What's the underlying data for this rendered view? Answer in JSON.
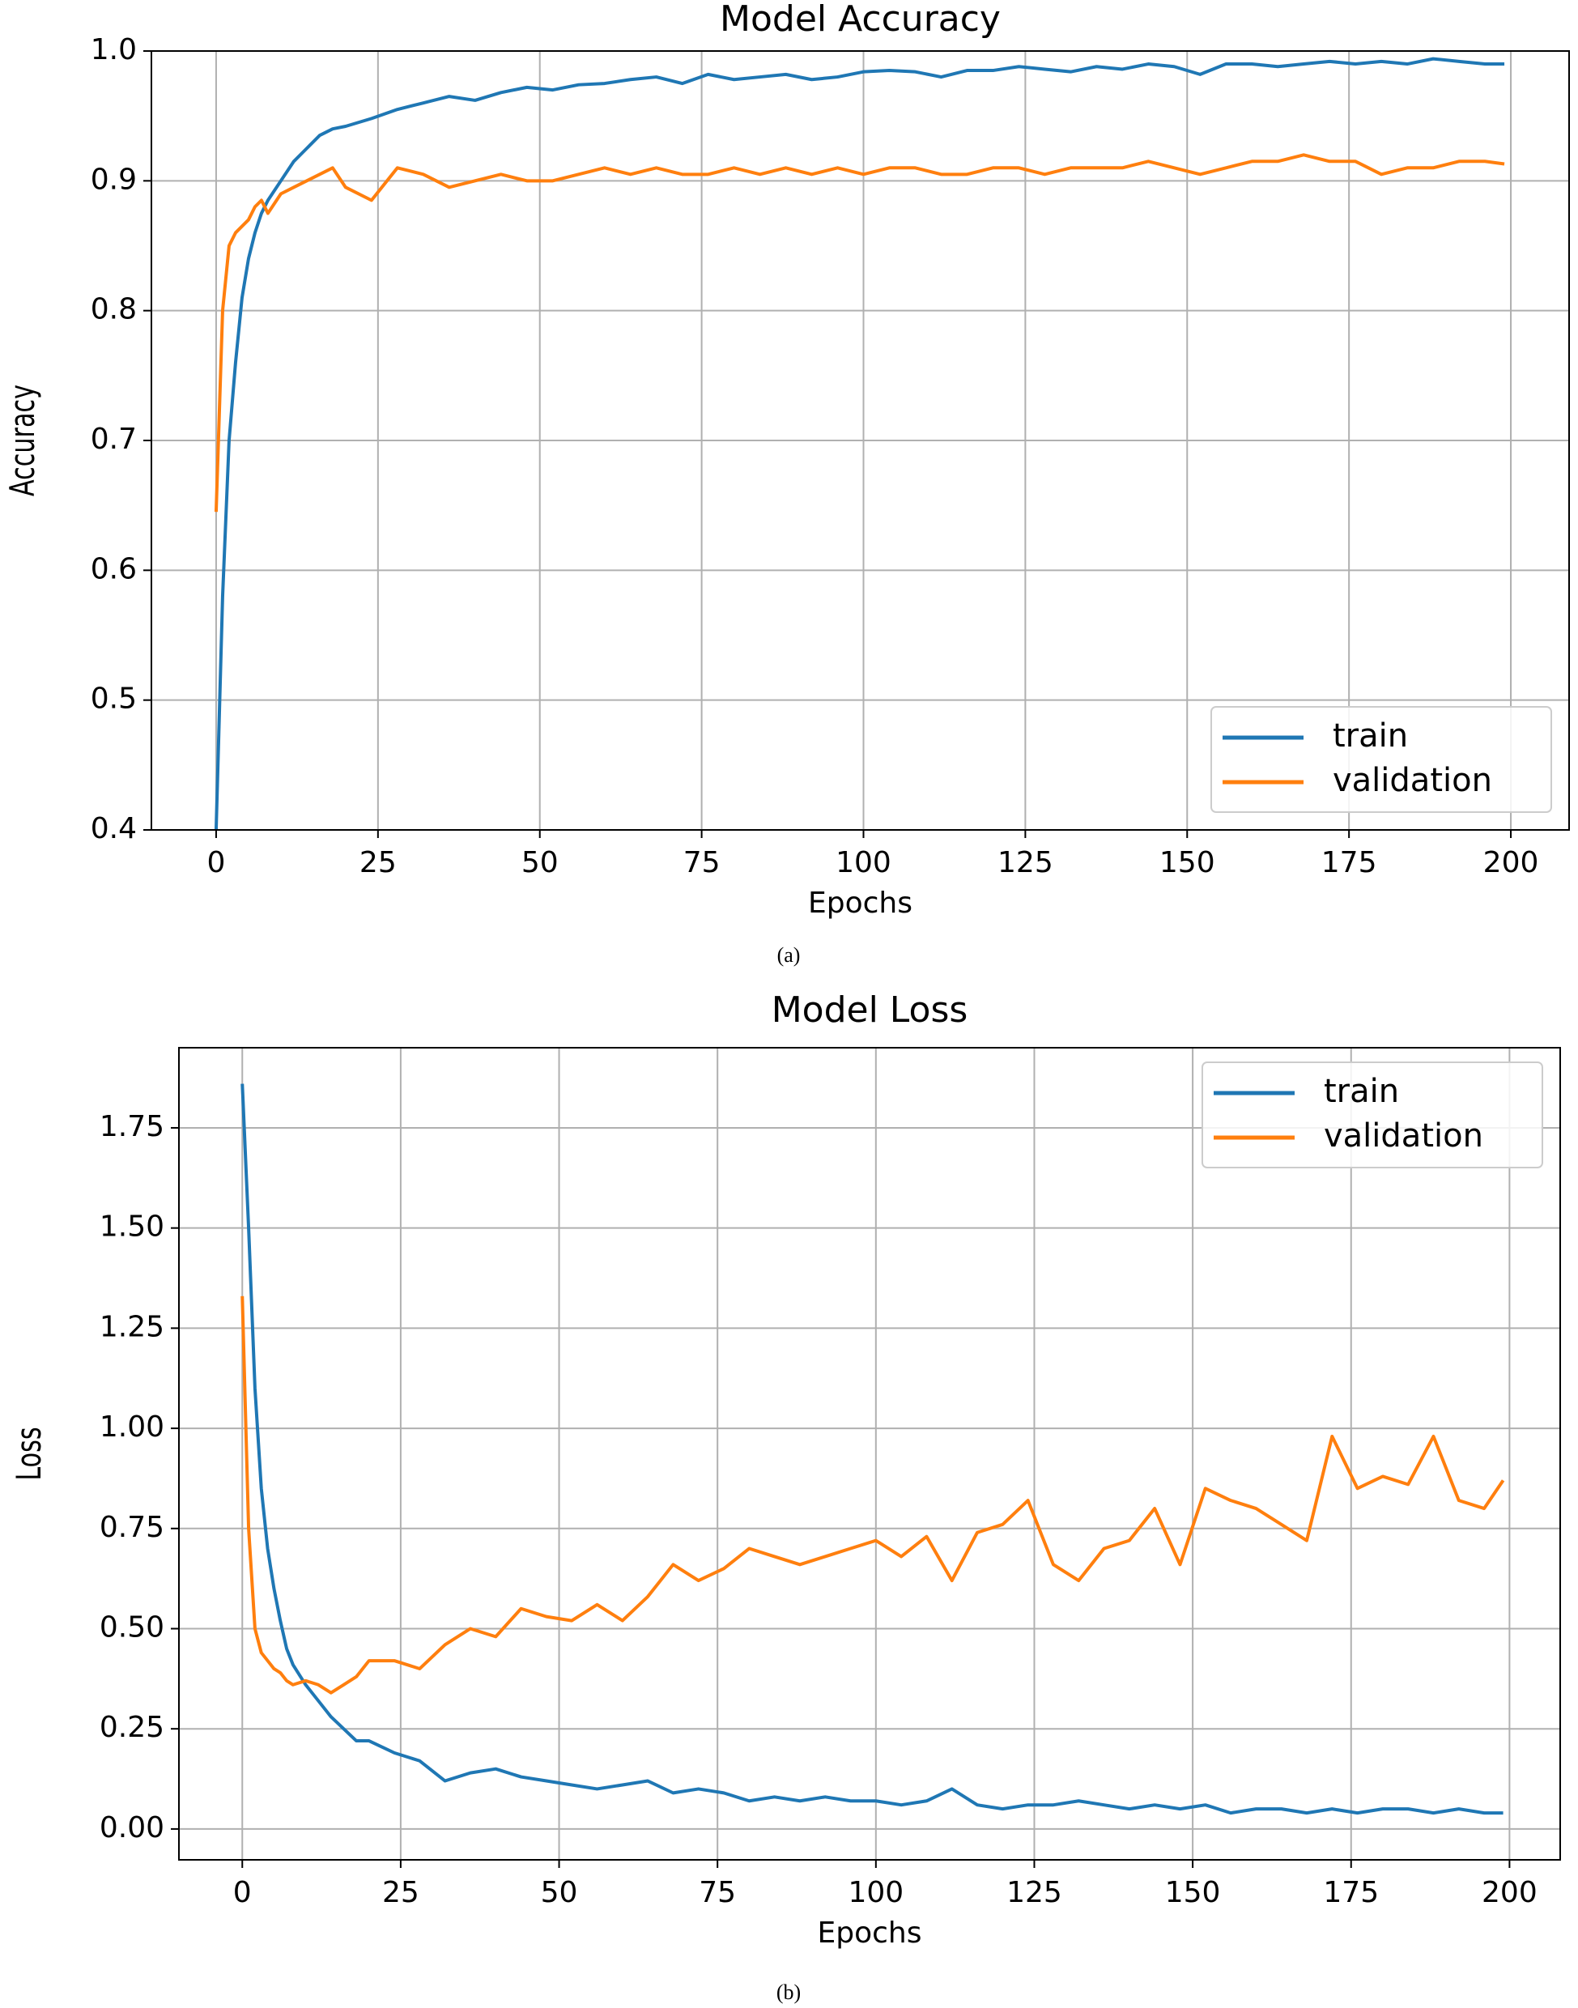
{
  "chart_data": [
    {
      "type": "line",
      "title": "Model Accuracy",
      "xlabel": "Epochs",
      "ylabel": "Accuracy",
      "caption": "(a)",
      "x": [
        0,
        1,
        2,
        3,
        4,
        5,
        6,
        7,
        8,
        10,
        12,
        14,
        16,
        18,
        20,
        24,
        28,
        32,
        36,
        40,
        44,
        48,
        52,
        56,
        60,
        64,
        68,
        72,
        76,
        80,
        84,
        88,
        92,
        96,
        100,
        104,
        108,
        112,
        116,
        120,
        124,
        128,
        132,
        136,
        140,
        144,
        148,
        152,
        156,
        160,
        164,
        168,
        172,
        176,
        180,
        184,
        188,
        192,
        196,
        199
      ],
      "series": [
        {
          "name": "train",
          "color": "#1f77b4",
          "values": [
            0.4,
            0.58,
            0.7,
            0.76,
            0.81,
            0.84,
            0.86,
            0.875,
            0.885,
            0.9,
            0.915,
            0.925,
            0.935,
            0.94,
            0.942,
            0.948,
            0.955,
            0.96,
            0.965,
            0.962,
            0.968,
            0.972,
            0.97,
            0.974,
            0.975,
            0.978,
            0.98,
            0.975,
            0.982,
            0.978,
            0.98,
            0.982,
            0.978,
            0.98,
            0.984,
            0.985,
            0.984,
            0.98,
            0.985,
            0.985,
            0.988,
            0.986,
            0.984,
            0.988,
            0.986,
            0.99,
            0.988,
            0.982,
            0.99,
            0.99,
            0.988,
            0.99,
            0.992,
            0.99,
            0.992,
            0.99,
            0.994,
            0.992,
            0.99,
            0.99
          ]
        },
        {
          "name": "validation",
          "color": "#ff7f0e",
          "values": [
            0.645,
            0.8,
            0.85,
            0.86,
            0.865,
            0.87,
            0.88,
            0.885,
            0.875,
            0.89,
            0.895,
            0.9,
            0.905,
            0.91,
            0.895,
            0.885,
            0.91,
            0.905,
            0.895,
            0.9,
            0.905,
            0.9,
            0.9,
            0.905,
            0.91,
            0.905,
            0.91,
            0.905,
            0.905,
            0.91,
            0.905,
            0.91,
            0.905,
            0.91,
            0.905,
            0.91,
            0.91,
            0.905,
            0.905,
            0.91,
            0.91,
            0.905,
            0.91,
            0.91,
            0.91,
            0.915,
            0.91,
            0.905,
            0.91,
            0.915,
            0.915,
            0.92,
            0.915,
            0.915,
            0.905,
            0.91,
            0.91,
            0.915,
            0.915,
            0.913
          ]
        }
      ],
      "xlim": [
        -10,
        209
      ],
      "ylim": [
        0.4,
        1.0
      ],
      "xticks": [
        0,
        25,
        50,
        75,
        100,
        125,
        150,
        175,
        200
      ],
      "yticks": [
        0.4,
        0.5,
        0.6,
        0.7,
        0.8,
        0.9,
        {
          "value": 1.0,
          "label": "1.0"
        }
      ],
      "grid": true,
      "legend": "lower right"
    },
    {
      "type": "line",
      "title": "Model Loss",
      "xlabel": "Epochs",
      "ylabel": "Loss",
      "caption": "(b)",
      "x": [
        0,
        1,
        2,
        3,
        4,
        5,
        6,
        7,
        8,
        10,
        12,
        14,
        16,
        18,
        20,
        24,
        28,
        32,
        36,
        40,
        44,
        48,
        52,
        56,
        60,
        64,
        68,
        72,
        76,
        80,
        84,
        88,
        92,
        96,
        100,
        104,
        108,
        112,
        116,
        120,
        124,
        128,
        132,
        136,
        140,
        144,
        148,
        152,
        156,
        160,
        164,
        168,
        172,
        176,
        180,
        184,
        188,
        192,
        196,
        199
      ],
      "series": [
        {
          "name": "train",
          "color": "#1f77b4",
          "values": [
            1.86,
            1.5,
            1.1,
            0.85,
            0.7,
            0.6,
            0.52,
            0.45,
            0.41,
            0.36,
            0.32,
            0.28,
            0.25,
            0.22,
            0.22,
            0.19,
            0.17,
            0.12,
            0.14,
            0.15,
            0.13,
            0.12,
            0.11,
            0.1,
            0.11,
            0.12,
            0.09,
            0.1,
            0.09,
            0.07,
            0.08,
            0.07,
            0.08,
            0.07,
            0.07,
            0.06,
            0.07,
            0.1,
            0.06,
            0.05,
            0.06,
            0.06,
            0.07,
            0.06,
            0.05,
            0.06,
            0.05,
            0.06,
            0.04,
            0.05,
            0.05,
            0.04,
            0.05,
            0.04,
            0.05,
            0.05,
            0.04,
            0.05,
            0.04,
            0.04
          ]
        },
        {
          "name": "validation",
          "color": "#ff7f0e",
          "values": [
            1.33,
            0.75,
            0.5,
            0.44,
            0.42,
            0.4,
            0.39,
            0.37,
            0.36,
            0.37,
            0.36,
            0.34,
            0.36,
            0.38,
            0.42,
            0.42,
            0.4,
            0.46,
            0.5,
            0.48,
            0.55,
            0.53,
            0.52,
            0.56,
            0.52,
            0.58,
            0.66,
            0.62,
            0.65,
            0.7,
            0.68,
            0.66,
            0.68,
            0.7,
            0.72,
            0.68,
            0.73,
            0.62,
            0.74,
            0.76,
            0.82,
            0.66,
            0.62,
            0.7,
            0.72,
            0.8,
            0.66,
            0.85,
            0.82,
            0.8,
            0.76,
            0.72,
            0.98,
            0.85,
            0.88,
            0.86,
            0.98,
            0.82,
            0.8,
            0.87
          ]
        }
      ],
      "xlim": [
        -10,
        208
      ],
      "ylim": [
        -0.077,
        1.95
      ],
      "xticks": [
        0,
        25,
        50,
        75,
        100,
        125,
        150,
        175,
        200
      ],
      "yticks": [
        {
          "value": 0.0,
          "label": "0.00"
        },
        0.25,
        {
          "value": 0.5,
          "label": "0.50"
        },
        0.75,
        {
          "value": 1.0,
          "label": "1.00"
        },
        1.25,
        {
          "value": 1.5,
          "label": "1.50"
        },
        1.75
      ],
      "grid": true,
      "legend": "upper right"
    }
  ]
}
